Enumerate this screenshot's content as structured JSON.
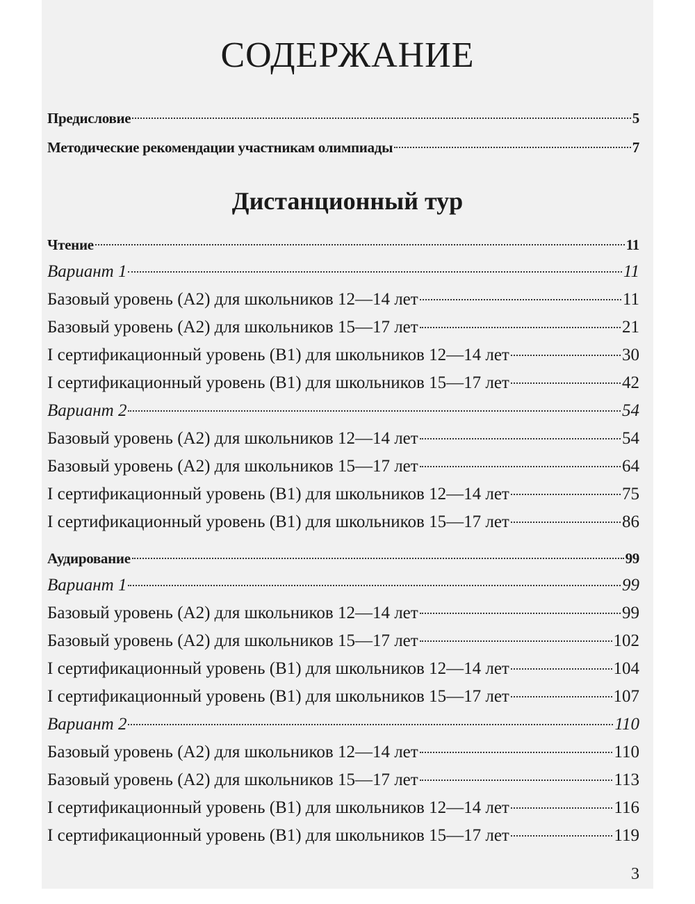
{
  "title": "СОДЕРЖАНИЕ",
  "front_matter": [
    {
      "label": "Предисловие",
      "page": 5
    },
    {
      "label": "Методические рекомендации участникам олимпиады",
      "page": 7
    }
  ],
  "part_title": "Дистанционный тур",
  "sections": [
    {
      "heading": "Чтение",
      "page": 11,
      "variants": [
        {
          "label": "Вариант 1",
          "page": 11,
          "items": [
            {
              "label": "Базовый уровень (А2) для школьников 12—14 лет",
              "page": 11
            },
            {
              "label": "Базовый уровень (А2) для школьников 15—17 лет",
              "page": 21
            },
            {
              "label": "I сертификационный уровень (В1) для школьников 12—14 лет",
              "page": 30
            },
            {
              "label": "I сертификационный уровень (В1) для школьников 15—17 лет",
              "page": 42
            }
          ]
        },
        {
          "label": "Вариант 2",
          "page": 54,
          "items": [
            {
              "label": "Базовый уровень (А2) для школьников 12—14 лет",
              "page": 54
            },
            {
              "label": "Базовый уровень (А2) для школьников 15—17 лет",
              "page": 64
            },
            {
              "label": "I сертификационный уровень (В1) для школьников 12—14 лет",
              "page": 75
            },
            {
              "label": "I сертификационный уровень (В1) для школьников 15—17 лет",
              "page": 86
            }
          ]
        }
      ]
    },
    {
      "heading": "Аудирование",
      "page": 99,
      "variants": [
        {
          "label": "Вариант 1",
          "page": 99,
          "items": [
            {
              "label": "Базовый уровень (А2) для школьников 12—14 лет",
              "page": 99
            },
            {
              "label": "Базовый уровень (А2) для школьников 15—17 лет",
              "page": 102
            },
            {
              "label": "I сертификационный уровень (В1) для школьников 12—14 лет",
              "page": 104
            },
            {
              "label": "I сертификационный уровень (В1) для школьников 15—17 лет",
              "page": 107
            }
          ]
        },
        {
          "label": "Вариант 2",
          "page": 110,
          "items": [
            {
              "label": "Базовый уровень (А2) для школьников 12—14 лет",
              "page": 110
            },
            {
              "label": "Базовый уровень (А2) для школьников 15—17 лет",
              "page": 113
            },
            {
              "label": "I сертификационный уровень (В1) для школьников 12—14 лет",
              "page": 116
            },
            {
              "label": "I сертификационный уровень (В1) для школьников 15—17 лет",
              "page": 119
            }
          ]
        }
      ]
    }
  ],
  "page_number": 3
}
